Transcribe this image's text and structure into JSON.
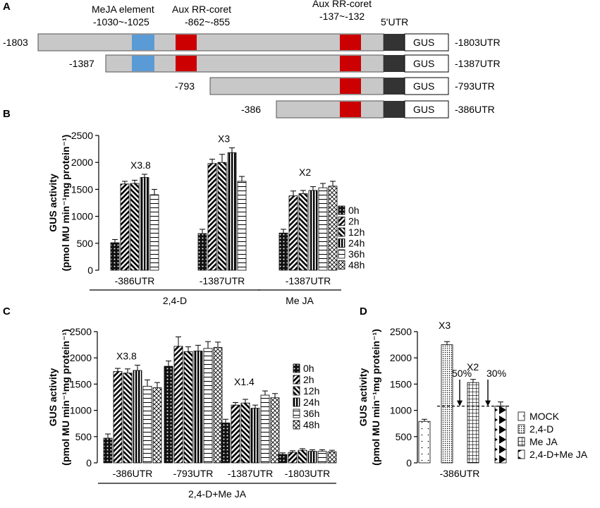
{
  "figure": {
    "panels": {
      "a": "A",
      "b": "B",
      "c": "C",
      "d": "D"
    }
  },
  "colors": {
    "construct_fill": "#c8c8c8",
    "meja": "#5b9bd5",
    "aux": "#cc0000",
    "utr": "#333333",
    "gus": "#ffffff"
  },
  "panel_a": {
    "header_labels": [
      {
        "text": "MeJA element"
      },
      {
        "text": "-1030~-1025"
      },
      {
        "text": "Aux RR-coret"
      },
      {
        "text": "-862~-855"
      },
      {
        "text": "Aux RR-coret"
      },
      {
        "text": "-137~-132"
      },
      {
        "text": "5'UTR"
      }
    ],
    "gus_label": "GUS",
    "constructs": [
      {
        "start": "-1803",
        "name": "-1803UTR"
      },
      {
        "start": "-1387",
        "name": "-1387UTR"
      },
      {
        "start": "-793",
        "name": "-793UTR"
      },
      {
        "start": "-386",
        "name": "-386UTR"
      }
    ]
  },
  "chart_data": [
    {
      "panel": "B",
      "type": "bar",
      "ylabel_line1": "GUS activity",
      "ylabel_line2": "(pmol MU min⁻¹mg protein⁻¹)",
      "ylim": [
        0,
        2500
      ],
      "yticks": [
        0,
        500,
        1000,
        1500,
        2000,
        2500
      ],
      "groups": [
        "-386UTR",
        "-1387UTR",
        "-1387UTR"
      ],
      "series_names": [
        "0h",
        "2h",
        "12h",
        "24h",
        "36h",
        "48h"
      ],
      "series": [
        {
          "name": "0h",
          "values": [
            510,
            680,
            690
          ]
        },
        {
          "name": "2h",
          "values": [
            1600,
            1980,
            1380
          ]
        },
        {
          "name": "12h",
          "values": [
            1610,
            2000,
            1420
          ]
        },
        {
          "name": "24h",
          "values": [
            1720,
            2180,
            1480
          ]
        },
        {
          "name": "36h",
          "values": [
            1400,
            1650,
            1530
          ]
        },
        {
          "name": "48h",
          "values": [
            null,
            null,
            1560
          ]
        }
      ],
      "errors": [
        [
          60,
          80,
          70
        ],
        [
          50,
          80,
          90
        ],
        [
          60,
          150,
          60
        ],
        [
          60,
          90,
          70
        ],
        [
          100,
          90,
          80
        ],
        [
          null,
          null,
          90
        ]
      ],
      "annotations": [
        {
          "text": "X3.8",
          "group": 0
        },
        {
          "text": "X3",
          "group": 1
        },
        {
          "text": "X2",
          "group": 2
        }
      ],
      "treatment_labels": [
        {
          "text": "2,4-D",
          "groups": [
            0,
            1
          ]
        },
        {
          "text": "Me JA",
          "groups": [
            2
          ]
        }
      ]
    },
    {
      "panel": "C",
      "type": "bar",
      "ylabel_line1": "GUS activity",
      "ylabel_line2": "(pmol MU min⁻¹mg protein⁻¹)",
      "ylim": [
        0,
        2500
      ],
      "yticks": [
        0,
        500,
        1000,
        1500,
        2000,
        2500
      ],
      "groups": [
        "-386UTR",
        "-793UTR",
        "-1387UTR",
        "-1803UTR"
      ],
      "series_names": [
        "0h",
        "2h",
        "12h",
        "24h",
        "36h",
        "48h"
      ],
      "series": [
        {
          "name": "0h",
          "values": [
            470,
            1840,
            760,
            160
          ]
        },
        {
          "name": "2h",
          "values": [
            1740,
            2220,
            1100,
            200
          ]
        },
        {
          "name": "12h",
          "values": [
            1710,
            2120,
            1140,
            240
          ]
        },
        {
          "name": "24h",
          "values": [
            1760,
            2130,
            1040,
            220
          ]
        },
        {
          "name": "36h",
          "values": [
            1460,
            2180,
            1290,
            220
          ]
        },
        {
          "name": "48h",
          "values": [
            1430,
            2200,
            1240,
            210
          ]
        }
      ],
      "errors": [
        [
          80,
          100,
          70,
          30
        ],
        [
          60,
          180,
          50,
          30
        ],
        [
          80,
          90,
          70,
          30
        ],
        [
          100,
          110,
          60,
          30
        ],
        [
          120,
          130,
          80,
          30
        ],
        [
          100,
          100,
          80,
          30
        ]
      ],
      "annotations": [
        {
          "text": "X3.8",
          "group": 0
        },
        {
          "text": "X1.4",
          "group": 2
        }
      ],
      "treatment_labels": [
        {
          "text": "2,4-D+Me JA",
          "groups": [
            0,
            1,
            2,
            3
          ]
        }
      ]
    },
    {
      "panel": "D",
      "type": "bar",
      "ylabel_line1": "GUS activity",
      "ylabel_line2": "(pmol MU min⁻¹mg protein⁻¹)",
      "ylim": [
        0,
        2500
      ],
      "yticks": [
        0,
        500,
        1000,
        1500,
        2000,
        2500
      ],
      "groups": [
        "-386UTR"
      ],
      "categories": [
        "MOCK",
        "2,4-D",
        "Me JA",
        "2,4-D+Me JA"
      ],
      "values": [
        790,
        2250,
        1530,
        1080
      ],
      "errors": [
        40,
        60,
        60,
        80
      ],
      "reference_line": 1080,
      "annotations": [
        {
          "text": "X3",
          "bar": 1
        },
        {
          "text": "X2",
          "bar": 2
        },
        {
          "text": "50%",
          "bar": 1
        },
        {
          "text": "30%",
          "bar": 2
        }
      ]
    }
  ]
}
